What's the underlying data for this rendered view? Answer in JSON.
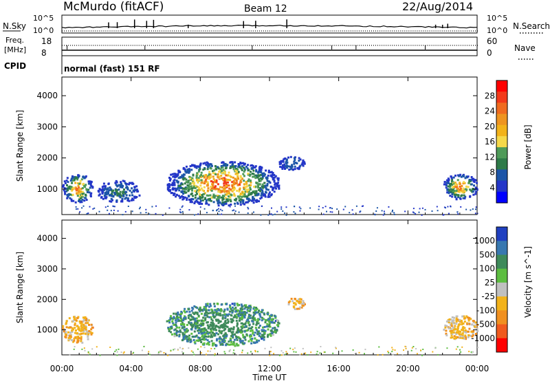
{
  "header": {
    "station": "McMurdo (fitACF)",
    "beam": "Beam 12",
    "date": "22/Aug/2014",
    "mode": "normal (fast) 151 RF"
  },
  "top_panels": {
    "nsky_label": "N.Sky",
    "nsky_ticks": [
      "10^5",
      "10^0"
    ],
    "nsearch_label": "N.Search",
    "nsearch_ticks": [
      "10^5",
      "10^0"
    ],
    "freq_label_1": "Freq.",
    "freq_label_2": "[MHz]",
    "freq_ticks": [
      "18",
      "8"
    ],
    "nave_label": "Nave",
    "nave_ticks": [
      "60",
      "0"
    ],
    "cpid_label": "CPID"
  },
  "chart_data": [
    {
      "type": "heatmap",
      "title": "",
      "xlabel": "",
      "ylabel": "Slant Range [km]",
      "xlim": [
        "00:00",
        "24:00"
      ],
      "ylim": [
        180,
        4600
      ],
      "x_ticks": [
        "00:00",
        "04:00",
        "08:00",
        "12:00",
        "16:00",
        "20:00",
        "00:00"
      ],
      "y_ticks": [
        1000,
        2000,
        3000,
        4000
      ],
      "colorbar": {
        "label": "Power [dB]",
        "ticks": [
          "28",
          "24",
          "20",
          "16",
          "12",
          "8",
          "4"
        ],
        "colors": [
          "#ff0000",
          "#f23a1a",
          "#f06b1f",
          "#ee9420",
          "#f2b21a",
          "#f5d84a",
          "#4e9a58",
          "#2e7a48",
          "#1c55a8",
          "#2436c8",
          "#0000ff"
        ]
      },
      "regions": [
        {
          "t_start": "00:00",
          "t_end": "01:45",
          "range_min": 600,
          "range_max": 1500,
          "max_value": 24
        },
        {
          "t_start": "02:00",
          "t_end": "04:30",
          "range_min": 600,
          "range_max": 1300,
          "max_value": 8
        },
        {
          "t_start": "06:00",
          "t_end": "12:30",
          "range_min": 500,
          "range_max": 1900,
          "max_value": 28
        },
        {
          "t_start": "12:30",
          "t_end": "14:00",
          "range_min": 1600,
          "range_max": 2100,
          "max_value": 6
        },
        {
          "t_start": "22:00",
          "t_end": "24:00",
          "range_min": 700,
          "range_max": 1500,
          "max_value": 24
        }
      ]
    },
    {
      "type": "heatmap",
      "title": "",
      "xlabel": "Time UT",
      "ylabel": "Slant Range [km]",
      "xlim": [
        "00:00",
        "24:00"
      ],
      "ylim": [
        180,
        4600
      ],
      "x_ticks": [
        "00:00",
        "04:00",
        "08:00",
        "12:00",
        "16:00",
        "20:00",
        "00:00"
      ],
      "y_ticks": [
        1000,
        2000,
        3000,
        4000
      ],
      "colorbar": {
        "label": "Velocity [m s^-1]",
        "ticks": [
          "1000",
          "500",
          "100",
          "25",
          "-25",
          "-100",
          "-500",
          "-1000"
        ],
        "colors": [
          "#2040c0",
          "#3878b0",
          "#3e8a5a",
          "#5cbd40",
          "#c0c0c0",
          "#f2b21a",
          "#f09020",
          "#f05a1e",
          "#ff0000"
        ]
      },
      "regions": [
        {
          "t_start": "00:00",
          "t_end": "01:45",
          "range_min": 600,
          "range_max": 1500,
          "velocity_class": "-100"
        },
        {
          "t_start": "06:00",
          "t_end": "12:30",
          "range_min": 500,
          "range_max": 1900,
          "velocity_class": "100"
        },
        {
          "t_start": "13:00",
          "t_end": "14:00",
          "range_min": 1700,
          "range_max": 2100,
          "velocity_class": "-100"
        },
        {
          "t_start": "22:00",
          "t_end": "24:00",
          "range_min": 700,
          "range_max": 1500,
          "velocity_class": "-100"
        }
      ]
    }
  ]
}
